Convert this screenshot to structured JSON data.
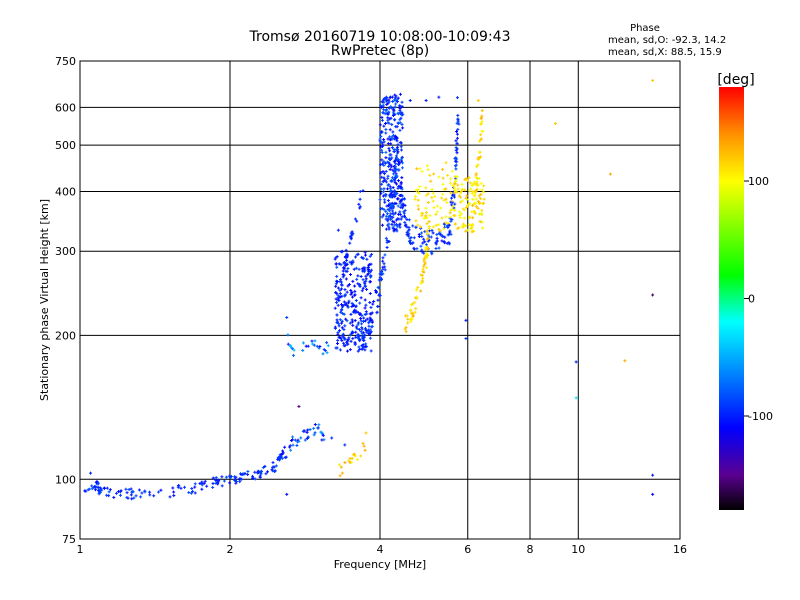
{
  "chart_data": {
    "type": "scatter",
    "title": "Tromsø 20160719 10:08:00-10:09:43",
    "subtitle": "RwPretec (8p)",
    "phase_stats": {
      "heading": "Phase",
      "line_o": "mean, sd,O: -92.3, 14.2",
      "line_x": "mean, sd,X:  88.5, 15.9"
    },
    "xlabel": "Frequency [MHz]",
    "ylabel": "Stationary phase Virtual Height [km]",
    "x_scale": "log",
    "y_scale": "log",
    "xlim": [
      1,
      16
    ],
    "ylim": [
      75,
      750
    ],
    "x_ticks": [
      1,
      2,
      4,
      6,
      8,
      10,
      16
    ],
    "x_tick_labels": [
      "1",
      "2",
      "4",
      "6",
      "8",
      "10",
      "16"
    ],
    "y_ticks": [
      75,
      100,
      200,
      300,
      400,
      500,
      600,
      750
    ],
    "y_tick_labels": [
      "75",
      "100",
      "200",
      "300",
      "400",
      "500",
      "600",
      "750"
    ],
    "grid": true,
    "colorbar": {
      "label": "[deg]",
      "range": [
        -180,
        180
      ],
      "ticks": [
        100,
        0,
        -100
      ],
      "tick_labels": [
        "100",
        "0",
        "-100"
      ],
      "stops": [
        {
          "v": -180,
          "c": "#000000"
        },
        {
          "v": -150,
          "c": "#5a0090"
        },
        {
          "v": -110,
          "c": "#0000ff"
        },
        {
          "v": -60,
          "c": "#0090ff"
        },
        {
          "v": -20,
          "c": "#00ffff"
        },
        {
          "v": 20,
          "c": "#00ff00"
        },
        {
          "v": 100,
          "c": "#ffff00"
        },
        {
          "v": 140,
          "c": "#ff9000"
        },
        {
          "v": 180,
          "c": "#ff0000"
        }
      ]
    },
    "series": [
      {
        "segments": [
          {
            "type": "curve",
            "pts": [
              [
                1.02,
                95
              ],
              [
                1.08,
                97
              ],
              [
                1.1,
                94
              ],
              [
                1.3,
                93
              ],
              [
                1.5,
                94
              ],
              [
                1.7,
                96
              ],
              [
                1.9,
                99
              ],
              [
                2.1,
                101
              ],
              [
                2.3,
                103
              ],
              [
                2.45,
                106
              ],
              [
                2.55,
                113
              ]
            ],
            "n": 170,
            "spread": 2.5,
            "phase": [
              -110,
              -80
            ]
          },
          {
            "type": "curve",
            "pts": [
              [
                2.55,
                113
              ],
              [
                2.7,
                120
              ],
              [
                2.85,
                125
              ],
              [
                3.0,
                128
              ],
              [
                3.1,
                122
              ]
            ],
            "n": 40,
            "spread": 3,
            "phase": [
              -120,
              -50
            ]
          },
          {
            "type": "curve",
            "pts": [
              [
                2.62,
                197
              ],
              [
                2.7,
                183
              ],
              [
                2.8,
                187
              ],
              [
                2.95,
                190
              ],
              [
                3.05,
                185
              ],
              [
                3.15,
                190
              ]
            ],
            "n": 25,
            "spread": 3,
            "phase": [
              -110,
              -40
            ]
          },
          {
            "type": "curve",
            "pts": [
              [
                3.25,
                200
              ],
              [
                3.35,
                260
              ],
              [
                3.45,
                300
              ],
              [
                3.55,
                340
              ],
              [
                3.7,
                400
              ]
            ],
            "n": 40,
            "spread": 3,
            "phase": [
              -110,
              -90
            ]
          },
          {
            "type": "cloud",
            "xr": [
              3.25,
              3.85
            ],
            "yr": [
              185,
              300
            ],
            "n": 260,
            "phase": [
              -115,
              -85
            ]
          },
          {
            "type": "curve",
            "pts": [
              [
                3.5,
                195
              ],
              [
                3.8,
                205
              ],
              [
                3.95,
                240
              ],
              [
                4.1,
                300
              ],
              [
                4.25,
                400
              ],
              [
                4.35,
                520
              ]
            ],
            "n": 130,
            "spread": 6,
            "phase": [
              -110,
              -80
            ]
          },
          {
            "type": "cloud",
            "xr": [
              4.0,
              4.45
            ],
            "yr": [
              330,
              640
            ],
            "n": 320,
            "phase": [
              -115,
              -75
            ]
          },
          {
            "type": "curve",
            "pts": [
              [
                4.4,
                400
              ],
              [
                4.6,
                325
              ],
              [
                4.9,
                315
              ],
              [
                5.2,
                312
              ],
              [
                5.5,
                330
              ],
              [
                5.65,
                400
              ],
              [
                5.75,
                600
              ]
            ],
            "n": 150,
            "spread": 6,
            "phase": [
              -110,
              -80
            ]
          },
          {
            "type": "curve",
            "pts": [
              [
                4.5,
                210
              ],
              [
                4.65,
                225
              ],
              [
                4.8,
                250
              ],
              [
                4.95,
                290
              ],
              [
                5.0,
                330
              ]
            ],
            "n": 70,
            "spread": 4,
            "phase": [
              100,
              130
            ]
          },
          {
            "type": "cloud",
            "xr": [
              4.7,
              5.6
            ],
            "yr": [
              330,
              460
            ],
            "n": 80,
            "phase": [
              95,
              125
            ]
          },
          {
            "type": "cloud",
            "xr": [
              5.6,
              6.5
            ],
            "yr": [
              330,
              430
            ],
            "n": 110,
            "phase": [
              90,
              125
            ]
          },
          {
            "type": "curve",
            "pts": [
              [
                6.1,
                330
              ],
              [
                6.2,
                380
              ],
              [
                6.3,
                450
              ],
              [
                6.4,
                530
              ],
              [
                6.4,
                600
              ]
            ],
            "n": 40,
            "spread": 4,
            "phase": [
              95,
              130
            ]
          },
          {
            "type": "curve",
            "pts": [
              [
                3.3,
                104
              ],
              [
                3.45,
                108
              ],
              [
                3.6,
                112
              ],
              [
                3.75,
                118
              ]
            ],
            "n": 18,
            "spread": 3,
            "phase": [
              100,
              140
            ]
          }
        ],
        "points": [
          {
            "x": 1.05,
            "y": 103,
            "p": -100
          },
          {
            "x": 2.6,
            "y": 93,
            "p": -110
          },
          {
            "x": 2.6,
            "y": 218,
            "p": -90
          },
          {
            "x": 2.75,
            "y": 142,
            "p": -150
          },
          {
            "x": 2.75,
            "y": 120,
            "p": -60
          },
          {
            "x": 3.2,
            "y": 122,
            "p": -95
          },
          {
            "x": 3.4,
            "y": 118,
            "p": -95
          },
          {
            "x": 3.3,
            "y": 332,
            "p": -100
          },
          {
            "x": 3.65,
            "y": 400,
            "p": -100
          },
          {
            "x": 4.6,
            "y": 620,
            "p": -100
          },
          {
            "x": 4.95,
            "y": 620,
            "p": -100
          },
          {
            "x": 5.25,
            "y": 630,
            "p": -100
          },
          {
            "x": 5.95,
            "y": 197,
            "p": -90
          },
          {
            "x": 5.95,
            "y": 215,
            "p": -100
          },
          {
            "x": 5.55,
            "y": 380,
            "p": -100
          },
          {
            "x": 6.3,
            "y": 620,
            "p": 120
          },
          {
            "x": 9.0,
            "y": 555,
            "p": 120
          },
          {
            "x": 11.6,
            "y": 435,
            "p": 130
          },
          {
            "x": 12.4,
            "y": 177,
            "p": 130
          },
          {
            "x": 9.9,
            "y": 176,
            "p": -100
          },
          {
            "x": 9.9,
            "y": 148,
            "p": -30
          },
          {
            "x": 14.1,
            "y": 683,
            "p": 120
          },
          {
            "x": 14.1,
            "y": 243,
            "p": -160
          },
          {
            "x": 14.1,
            "y": 102,
            "p": -100
          },
          {
            "x": 14.1,
            "y": 93,
            "p": -110
          },
          {
            "x": 3.0,
            "y": 128,
            "p": -80
          },
          {
            "x": 3.75,
            "y": 125,
            "p": 120
          }
        ]
      }
    ]
  }
}
